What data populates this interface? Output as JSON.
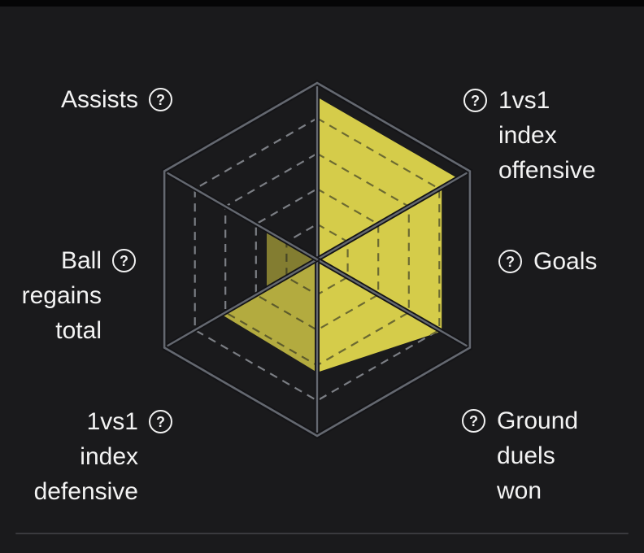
{
  "page": {
    "background": "#1a1a1c",
    "top_bar_color": "#050506",
    "divider_color": "#3a3a3e",
    "text_color": "#f3f3f3"
  },
  "icons": {
    "help": "?"
  },
  "labels": {
    "assists": {
      "line1": "Assists"
    },
    "offensive": {
      "line1": "1vs1",
      "line2": "index",
      "line3": "offensive"
    },
    "ball": {
      "line1": "Ball",
      "line2": "regains",
      "line3": "total"
    },
    "goals": {
      "line1": "Goals"
    },
    "defensive": {
      "line1": "1vs1",
      "line2": "index",
      "line3": "defensive"
    },
    "ground": {
      "line1": "Ground",
      "line2": "duels",
      "line3": "won"
    }
  },
  "chart_data": {
    "type": "radar",
    "style": "hexagon-sector-fill",
    "title": "",
    "scale": [
      0,
      1
    ],
    "axes": [
      "Assists",
      "1vs1 index offensive",
      "Goals",
      "Ground duels won",
      "1vs1 index defensive",
      "Ball regains total"
    ],
    "grid": {
      "spokes_deg": [
        90,
        30,
        -30,
        -90,
        -150,
        -210
      ],
      "dashed_levels": [
        0.2,
        0.4,
        0.6,
        0.8
      ],
      "outer_level": 1.0
    },
    "sectors": [
      {
        "label": "1vs1 index offensive",
        "from_deg": 90,
        "to_deg": 30,
        "value_from": 0.92,
        "value_to": 0.92,
        "tone": "bright"
      },
      {
        "label": "Goals",
        "from_deg": 30,
        "to_deg": -30,
        "value_from": 0.815,
        "value_to": 0.815,
        "tone": "bright"
      },
      {
        "label": "Ground duels won",
        "from_deg": -30,
        "to_deg": -90,
        "value_from": 0.815,
        "value_to": 0.64,
        "tone": "bright"
      },
      {
        "label": "1vs1 index defensive",
        "from_deg": -90,
        "to_deg": -150,
        "value_from": 0.64,
        "value_to": 0.625,
        "tone": "medium"
      },
      {
        "label": "Ball regains total",
        "from_deg": -150,
        "to_deg": -210,
        "value_from": 0.33,
        "value_to": 0.33,
        "tone": "dark"
      },
      {
        "label": "Assists",
        "from_deg": -210,
        "to_deg": -270,
        "value_from": 0,
        "value_to": 0,
        "tone": "none"
      }
    ],
    "colors": {
      "bright": "#d5cc4a",
      "medium": "#b3ab3f",
      "dark": "#837d31",
      "grid_solid": "#646870",
      "grid_dash": "#7b7e84",
      "grid_dash_on_fill": "rgba(22,25,30,0.55)",
      "line_casing": "#141417"
    }
  }
}
